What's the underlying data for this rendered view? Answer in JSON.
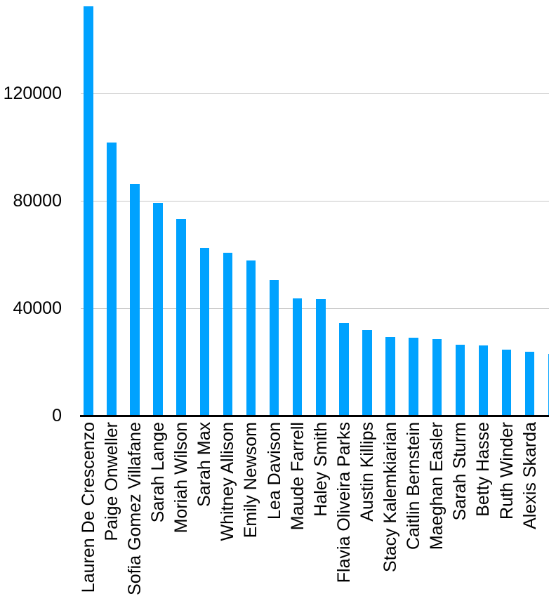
{
  "chart_data": {
    "type": "bar",
    "title": "",
    "xlabel": "",
    "ylabel": "",
    "categories": [
      "Lauren De Crescenzo",
      "Paige Onweller",
      "Sofia Gomez Villafane",
      "Sarah Lange",
      "Moriah Wilson",
      "Sarah Max",
      "Whitney Allison",
      "Emily Newsom",
      "Lea Davison",
      "Maude Farrell",
      "Haley Smith",
      "Flavia Oliveira Parks",
      "Austin Killips",
      "Stacy Kalemkiarian",
      "Caitlin Bernstein",
      "Maeghan Easler",
      "Sarah Sturm",
      "Betty Hasse",
      "Ruth Winder",
      "Alexis Skarda"
    ],
    "values": [
      152400,
      101700,
      86100,
      79200,
      73100,
      62400,
      60500,
      57700,
      50300,
      43700,
      43500,
      34400,
      31800,
      29200,
      29000,
      28500,
      26300,
      26100,
      24500,
      23800
    ],
    "clipped_partial_bar_value": 23100,
    "ytick_labels": [
      "0",
      "40000",
      "80000",
      "120000"
    ],
    "ytick_values": [
      0,
      40000,
      80000,
      120000
    ],
    "ylim": [
      0,
      153000
    ],
    "grid": "horizontal",
    "legend_position": "none",
    "colors": {
      "bar": "#00A2FF",
      "gridline": "#C8C8C8",
      "axis_line": "#000000",
      "tick_label": "#000000",
      "background": "#FFFFFF"
    }
  }
}
